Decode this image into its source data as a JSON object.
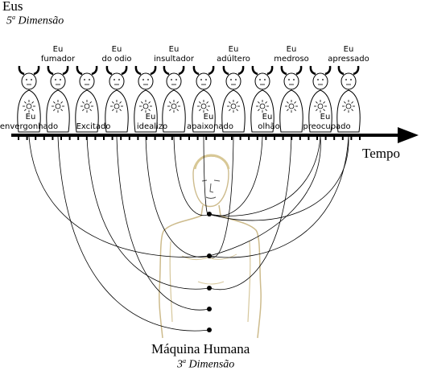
{
  "header": {
    "title": "Eus",
    "subtitle_num": "5",
    "subtitle_sup": "a",
    "subtitle_rest": " Dimensão"
  },
  "footer": {
    "title": "Máquina Humana",
    "subtitle_num": "3",
    "subtitle_sup": "a",
    "subtitle_rest": " Dimensão"
  },
  "axis": {
    "label": "Tempo"
  },
  "selves": {
    "top": [
      [
        "Eu",
        "fumador"
      ],
      [
        "Eu",
        "do odio"
      ],
      [
        "Eu",
        "insultador"
      ],
      [
        "Eu",
        "adúltero"
      ],
      [
        "Eu",
        "medroso"
      ],
      [
        "Eu",
        "apressado"
      ]
    ],
    "bottom": [
      [
        "Eu",
        "envergonhado"
      ],
      [
        "",
        "Excitado"
      ],
      [
        "Eu",
        "idealizo"
      ],
      [
        "Eu",
        "apaixonado"
      ],
      [
        "Eu",
        "olhão"
      ],
      [
        "Eu",
        "preocupado"
      ]
    ]
  },
  "colors": {
    "line": "#000000",
    "body_outline": "#d9c9a0",
    "face": "#4a4a4a"
  }
}
